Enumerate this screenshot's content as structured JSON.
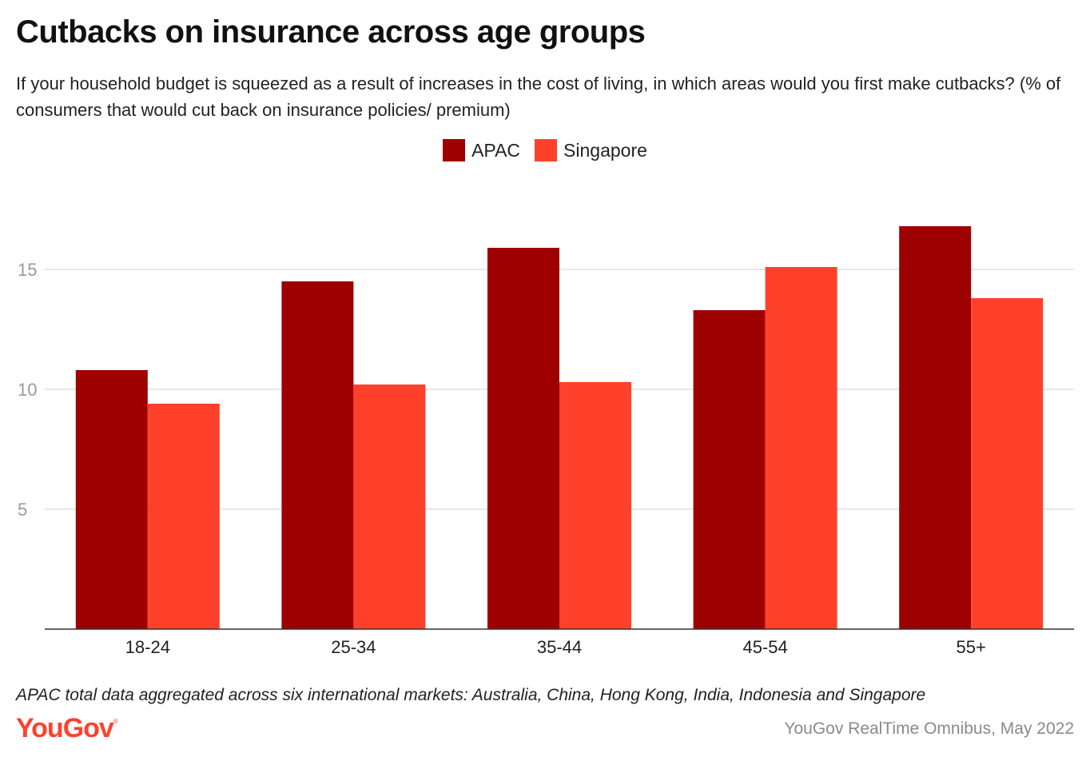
{
  "title": "Cutbacks on insurance across age groups",
  "subtitle": "If your household budget is squeezed as a result of increases in the cost of living, in which areas would you first make cutbacks? (% of consumers that would cut back on insurance policies/ premium)",
  "footnote": "APAC total data aggregated across six international markets: Australia, China, Hong Kong, India, Indonesia and Singapore",
  "logo": "YouGov",
  "source": "YouGov RealTime Omnibus, May 2022",
  "colors": {
    "apac": "#9e0000",
    "singapore": "#ff412c",
    "grid": "#e1e1e1",
    "axis": "#333333",
    "tick_text": "#9a9a9a"
  },
  "chart_data": {
    "type": "bar",
    "categories": [
      "18-24",
      "25-34",
      "35-44",
      "45-54",
      "55+"
    ],
    "series": [
      {
        "name": "APAC",
        "values": [
          10.8,
          14.5,
          15.9,
          13.3,
          16.8
        ]
      },
      {
        "name": "Singapore",
        "values": [
          9.4,
          10.2,
          10.3,
          15.1,
          13.8
        ]
      }
    ],
    "ylim": [
      0,
      17.5
    ],
    "yticks": [
      5,
      10,
      15
    ],
    "grid": true,
    "legend": "top-center",
    "xlabel": "",
    "ylabel": ""
  }
}
